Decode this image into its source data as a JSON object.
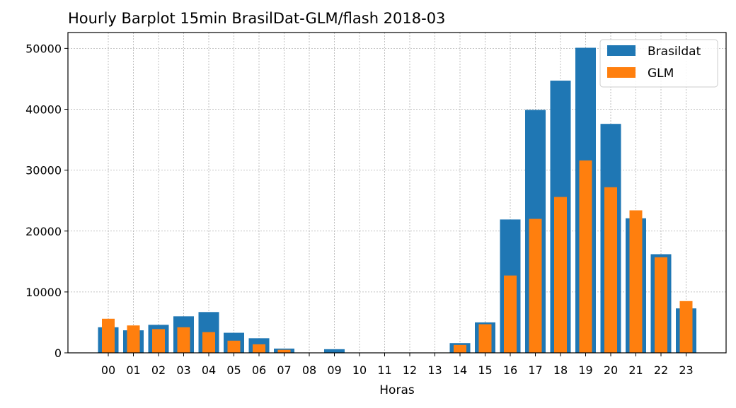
{
  "chart_data": {
    "type": "bar",
    "title": "Hourly Barplot 15min BrasilDat-GLM/flash 2018-03",
    "xlabel": "Horas",
    "ylabel": "",
    "ylim": [
      0,
      52600
    ],
    "yticks": [
      0,
      10000,
      20000,
      30000,
      40000,
      50000
    ],
    "grid": true,
    "legend_position": "top-right",
    "categories": [
      "00",
      "01",
      "02",
      "03",
      "04",
      "05",
      "06",
      "07",
      "08",
      "09",
      "10",
      "11",
      "12",
      "13",
      "14",
      "15",
      "16",
      "17",
      "18",
      "19",
      "20",
      "21",
      "22",
      "23"
    ],
    "series": [
      {
        "name": "Brasildat",
        "color": "#1f77b4",
        "values": [
          4200,
          3700,
          4600,
          6000,
          6700,
          3300,
          2400,
          700,
          0,
          600,
          0,
          0,
          0,
          0,
          1600,
          5000,
          21900,
          39900,
          44700,
          50100,
          37600,
          22100,
          16200,
          7300
        ]
      },
      {
        "name": "GLM",
        "color": "#ff7f0e",
        "values": [
          5600,
          4500,
          3900,
          4200,
          3400,
          2000,
          1400,
          500,
          0,
          0,
          0,
          0,
          0,
          0,
          1300,
          4700,
          12700,
          22000,
          25600,
          31600,
          27200,
          23400,
          15700,
          8500
        ]
      }
    ]
  }
}
